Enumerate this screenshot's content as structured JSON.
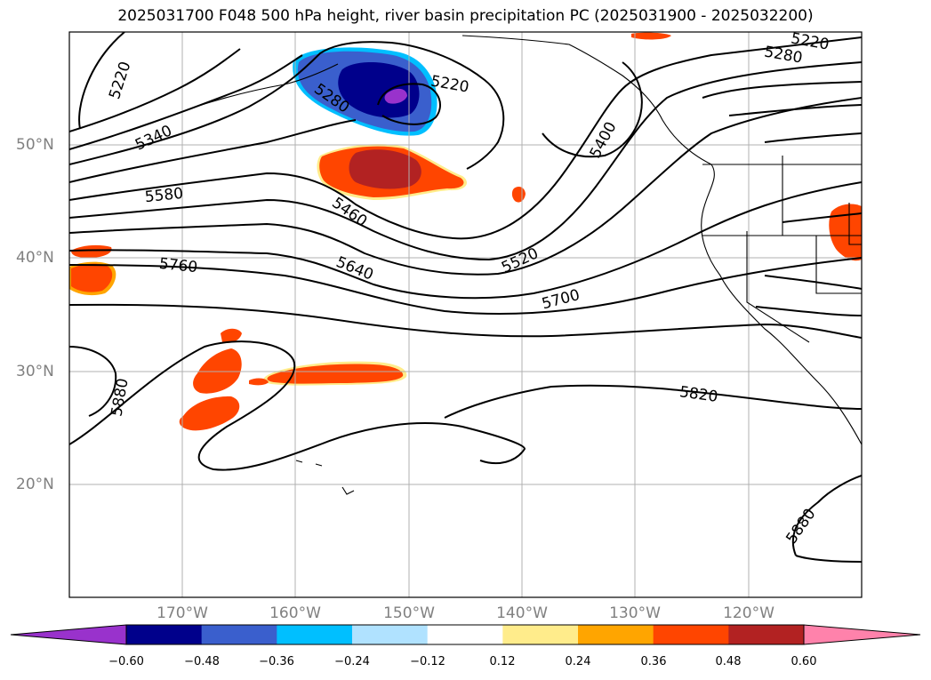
{
  "title": "2025031700 F048 500 hPa height, river basin precipitation PC (2025031900 - 2025032200)",
  "lat_labels": [
    "50°N",
    "40°N",
    "30°N",
    "20°N"
  ],
  "lon_labels": [
    "170°W",
    "160°W",
    "150°W",
    "140°W",
    "130°W",
    "120°W"
  ],
  "contour_labels": [
    "5220",
    "5280",
    "5340",
    "5400",
    "5460",
    "5520",
    "5580",
    "5640",
    "5700",
    "5760",
    "5820",
    "5880"
  ],
  "colorbar": {
    "ticks": [
      "−0.60",
      "−0.48",
      "−0.36",
      "−0.24",
      "−0.12",
      "0.12",
      "0.24",
      "0.36",
      "0.48",
      "0.60"
    ],
    "colors": [
      "#9932cc",
      "#00008b",
      "#3a5fcd",
      "#00bfff",
      "#b0e2ff",
      "#ffffff",
      "#ffec8b",
      "#ffa500",
      "#ff4500",
      "#b22222",
      "#ff82ab"
    ]
  }
}
